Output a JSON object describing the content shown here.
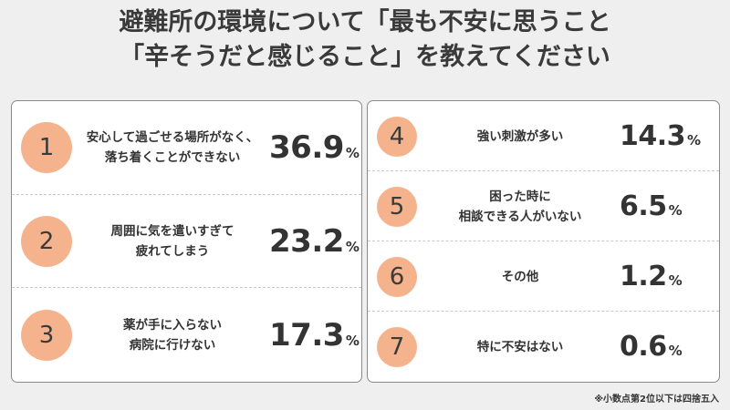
{
  "title_lines": [
    "避難所の環境について「最も不安に思うこと",
    "「辛そうだと感じること」を教えてください"
  ],
  "chart_data": {
    "type": "table",
    "unit": "%",
    "items": [
      {
        "rank": "1",
        "label": "安心して過ごせる場所がなく、\n落ち着くことができない",
        "value": "36.9"
      },
      {
        "rank": "2",
        "label": "周囲に気を遣いすぎて\n疲れてしまう",
        "value": "23.2"
      },
      {
        "rank": "3",
        "label": "薬が手に入らない\n病院に行けない",
        "value": "17.3"
      },
      {
        "rank": "4",
        "label": "強い刺激が多い",
        "value": "14.3"
      },
      {
        "rank": "5",
        "label": "困った時に\n相談できる人がいない",
        "value": "6.5"
      },
      {
        "rank": "6",
        "label": "その他",
        "value": "1.2"
      },
      {
        "rank": "7",
        "label": "特に不安はない",
        "value": "0.6"
      }
    ]
  },
  "colors": {
    "badge": "#f4b38c",
    "background": "#efefef",
    "panel": "#ffffff"
  },
  "footnote": "※小数点第2位以下は四捨五入"
}
